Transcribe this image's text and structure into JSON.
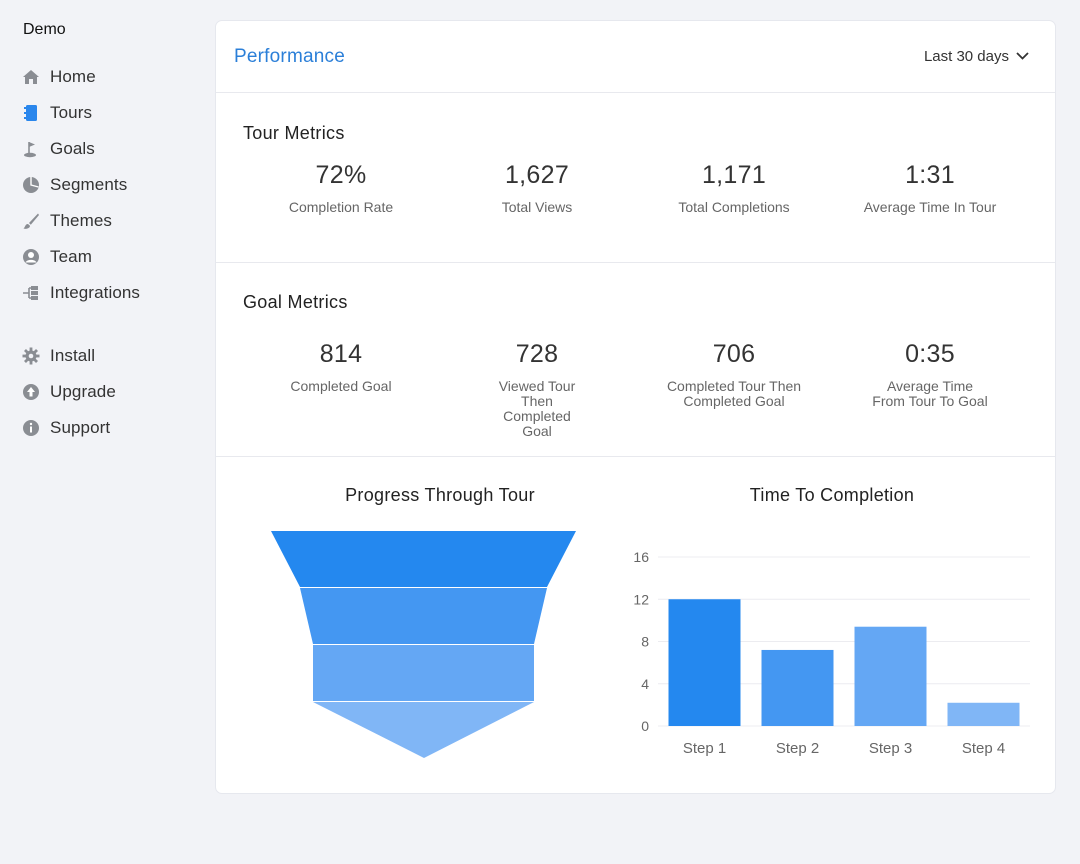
{
  "app": {
    "brand": "Demo"
  },
  "sidebar": {
    "items": [
      {
        "label": "Home",
        "icon": "home-icon"
      },
      {
        "label": "Tours",
        "icon": "book-icon"
      },
      {
        "label": "Goals",
        "icon": "flag-icon"
      },
      {
        "label": "Segments",
        "icon": "pie-icon"
      },
      {
        "label": "Themes",
        "icon": "brush-icon"
      },
      {
        "label": "Team",
        "icon": "user-icon"
      },
      {
        "label": "Integrations",
        "icon": "integration-icon"
      },
      {
        "label": "Install",
        "icon": "gear-icon"
      },
      {
        "label": "Upgrade",
        "icon": "upgrade-icon"
      },
      {
        "label": "Support",
        "icon": "info-icon"
      }
    ]
  },
  "header": {
    "title": "Performance",
    "range": "Last 30 days"
  },
  "tour_metrics": {
    "title": "Tour Metrics",
    "items": [
      {
        "value": "72%",
        "label": "Completion Rate"
      },
      {
        "value": "1,627",
        "label": "Total Views"
      },
      {
        "value": "1,171",
        "label": "Total Completions"
      },
      {
        "value": "1:31",
        "label": "Average Time In Tour"
      }
    ]
  },
  "goal_metrics": {
    "title": "Goal Metrics",
    "items": [
      {
        "value": "814",
        "label": "Completed Goal"
      },
      {
        "value": "728",
        "label": "Viewed Tour Then Completed Goal"
      },
      {
        "value": "706",
        "label": "Completed Tour Then Completed Goal"
      },
      {
        "value": "0:35",
        "label": "Average Time From Tour To Goal"
      }
    ]
  },
  "charts": {
    "funnel_title": "Progress Through Tour",
    "bar_title": "Time To Completion"
  },
  "colors": {
    "accent": "#2b7fd8",
    "funnel": [
      "#2488ef",
      "#4497f2",
      "#64a7f4",
      "#80b6f6"
    ],
    "bars": [
      "#2488ef",
      "#4497f2",
      "#64a7f4",
      "#80b6f6"
    ]
  },
  "chart_data": [
    {
      "type": "funnel",
      "title": "Progress Through Tour",
      "stages": 4
    },
    {
      "type": "bar",
      "title": "Time To Completion",
      "categories": [
        "Step 1",
        "Step 2",
        "Step 3",
        "Step 4"
      ],
      "values": [
        12,
        7.2,
        9.4,
        2.2
      ],
      "yticks": [
        0,
        4,
        8,
        12,
        16
      ],
      "ylim": [
        0,
        16
      ],
      "grid": true
    }
  ]
}
